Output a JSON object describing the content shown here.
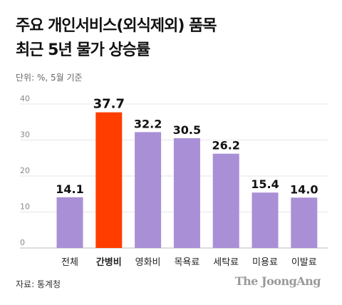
{
  "header": {
    "title_line1": "주요 개인서비스(외식제외) 품목",
    "title_line2": "최근 5년 물가 상승률",
    "unit": "단위: %, 5월 기준"
  },
  "footer": {
    "source": "자료: 통계청",
    "brand": "The JoongAng"
  },
  "chart_data": {
    "type": "bar",
    "categories": [
      "전체",
      "간병비",
      "영화비",
      "목욕료",
      "세탁료",
      "미용료",
      "이발료"
    ],
    "values": [
      14.1,
      37.7,
      32.2,
      30.5,
      26.2,
      15.4,
      14.0
    ],
    "value_labels": [
      "14.1",
      "37.7",
      "32.2",
      "30.5",
      "26.2",
      "15.4",
      "14.0"
    ],
    "highlight_index": 1,
    "ylim": [
      0,
      40
    ],
    "yticks": [
      "0",
      "10",
      "20",
      "30",
      "40"
    ],
    "grid": true,
    "colors": {
      "default": "#a98fd6",
      "highlight": "#ff3d00",
      "highlight_text": "#ff3d00",
      "grid": "#e6e6e6"
    }
  }
}
